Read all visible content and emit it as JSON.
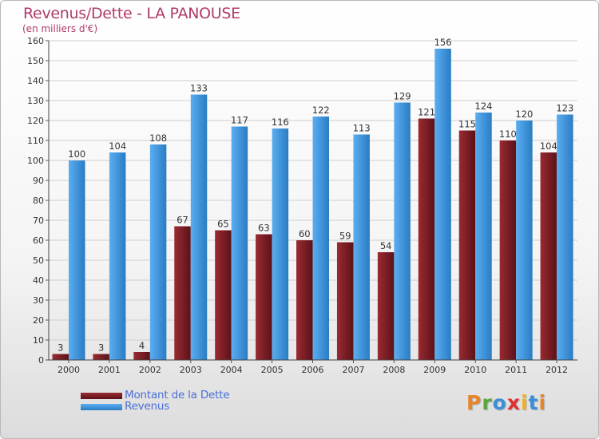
{
  "chart_data": {
    "type": "bar",
    "title": "Revenus/Dette - LA PANOUSE",
    "subtitle": "(en milliers d'€)",
    "xlabel": "",
    "ylabel": "",
    "ylim": [
      0,
      160
    ],
    "yticks": [
      0,
      10,
      20,
      30,
      40,
      50,
      60,
      70,
      80,
      90,
      100,
      110,
      120,
      130,
      140,
      150,
      160
    ],
    "grid": true,
    "categories": [
      "2000",
      "2001",
      "2002",
      "2003",
      "2004",
      "2005",
      "2006",
      "2007",
      "2008",
      "2009",
      "2010",
      "2011",
      "2012"
    ],
    "series": [
      {
        "name": "Montant de la Dette",
        "color": "#7a1f26",
        "values": [
          3,
          3,
          4,
          67,
          65,
          63,
          60,
          59,
          54,
          121,
          115,
          110,
          104
        ],
        "labels": [
          "3",
          "3",
          "4",
          "67",
          "65",
          "63",
          "60",
          "59",
          "54",
          "121",
          "115",
          "110",
          "104"
        ]
      },
      {
        "name": "Revenus",
        "color": "#3a94e0",
        "values": [
          100,
          104,
          108,
          133,
          117,
          116,
          122,
          113,
          129,
          156,
          124,
          120,
          123
        ],
        "labels": [
          "100",
          "104",
          "108",
          "133",
          "117",
          "116",
          "122",
          "113",
          "129",
          "156",
          "124",
          "120",
          "123"
        ]
      }
    ],
    "legend": [
      "Montant de la Dette",
      "Revenus"
    ],
    "legend_position": "bottom-left"
  },
  "watermark": {
    "text": "Proxiti",
    "letter_colors": [
      "#e8842a",
      "#5aa63c",
      "#3b8fd8",
      "#e03030",
      "#f0b020",
      "#3b8fd8",
      "#e8842a"
    ]
  }
}
